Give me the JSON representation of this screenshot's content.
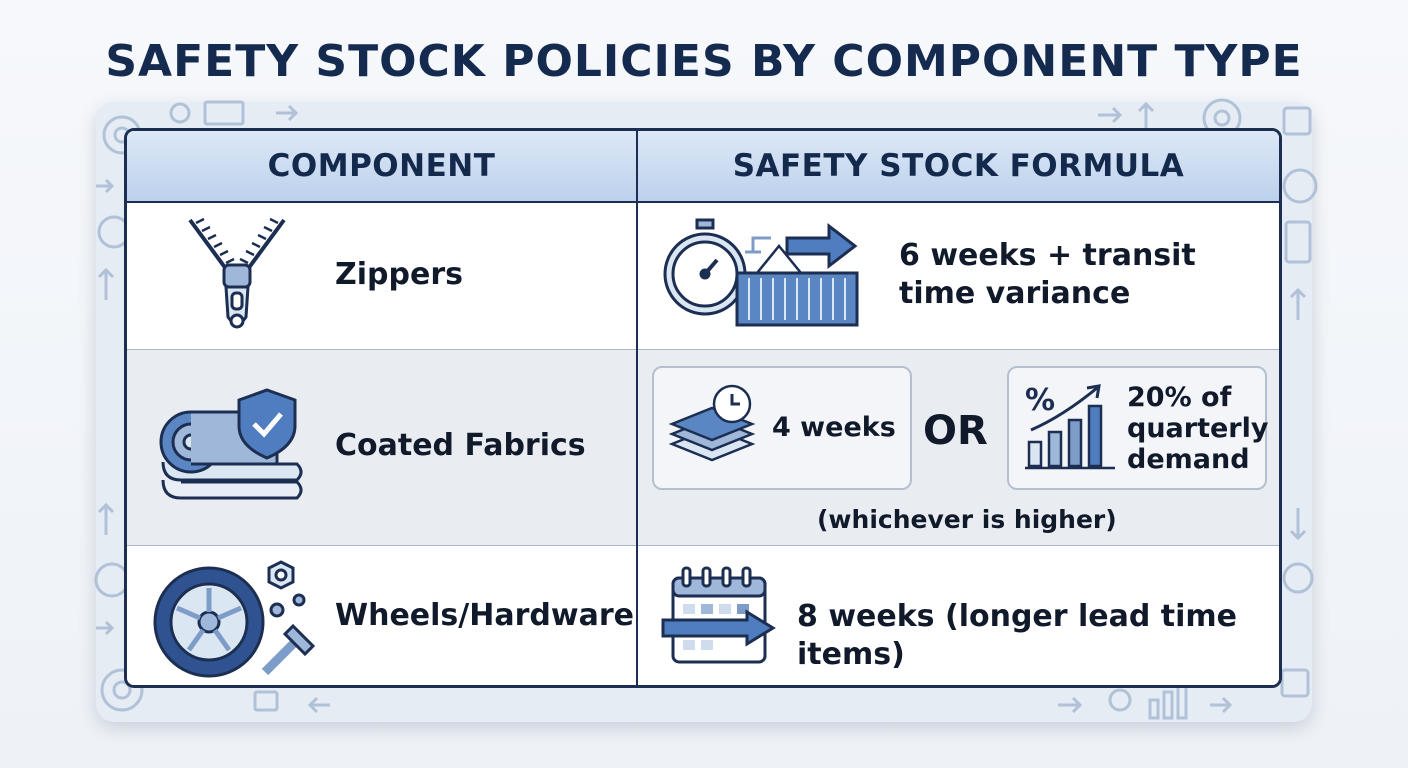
{
  "title": "SAFETY STOCK POLICIES BY COMPONENT TYPE",
  "table": {
    "headers": {
      "component": "COMPONENT",
      "formula": "SAFETY STOCK FORMULA"
    },
    "rows": [
      {
        "component": "Zippers",
        "component_icon": "zipper-icon",
        "formula_icon": "stopwatch-container-icon",
        "formula_line1": "6 weeks + transit",
        "formula_line2": "time variance"
      },
      {
        "component": "Coated Fabrics",
        "component_icon": "fabric-roll-shield-icon",
        "option_a": {
          "icon": "fabric-stack-clock-icon",
          "text": "4 weeks"
        },
        "connector": "OR",
        "option_b": {
          "icon": "percent-growth-chart-icon",
          "line1": "20% of",
          "line2": "quarterly",
          "line3": "demand"
        },
        "note": "(whichever is higher)"
      },
      {
        "component": "Wheels/Hardware",
        "component_icon": "wheel-bolt-icon",
        "formula_icon": "calendar-arrow-icon",
        "formula": "8 weeks (longer lead time items)"
      }
    ]
  },
  "colors": {
    "navy": "#1c2f52",
    "accent_blue": "#3f6fb5",
    "light_blue": "#bcd1ec",
    "row_shade": "#e9edf2"
  }
}
